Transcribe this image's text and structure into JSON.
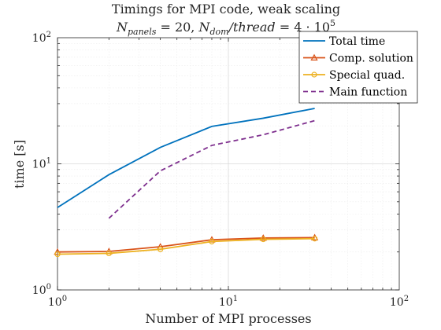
{
  "chart_data": {
    "type": "line",
    "title": "Timings for MPI code, weak scaling",
    "subtitle": "N_panels = 20, N_dom/thread = 4·10^5",
    "subtitle_parts": {
      "n_panels": "panels",
      "n_dom": "dom",
      "thread": "thread",
      "value_panels": "20",
      "mantissa": "4",
      "exponent": "5"
    },
    "xlabel": "Number of MPI processes",
    "ylabel": "time [s]",
    "xscale": "log",
    "yscale": "log",
    "xlim": [
      1,
      100
    ],
    "ylim": [
      1,
      100
    ],
    "x_ticks": [
      {
        "value": 1,
        "base": "10",
        "exp": "0"
      },
      {
        "value": 10,
        "base": "10",
        "exp": "1"
      },
      {
        "value": 100,
        "base": "10",
        "exp": "2"
      }
    ],
    "y_ticks": [
      {
        "value": 1,
        "base": "10",
        "exp": "0"
      },
      {
        "value": 10,
        "base": "10",
        "exp": "1"
      },
      {
        "value": 100,
        "base": "10",
        "exp": "2"
      }
    ],
    "grid": true,
    "minor_grid": true,
    "legend_position": "top-right",
    "series": [
      {
        "name": "Total time",
        "color": "#0072BD",
        "style": "solid",
        "marker": "none",
        "x": [
          1,
          2,
          4,
          8,
          16,
          32
        ],
        "y": [
          4.5,
          8.2,
          13.5,
          19.8,
          23.0,
          27.5
        ]
      },
      {
        "name": "Comp. solution",
        "color": "#D95319",
        "style": "solid",
        "marker": "triangle",
        "x": [
          1,
          2,
          4,
          8,
          16,
          32
        ],
        "y": [
          2.0,
          2.02,
          2.2,
          2.5,
          2.58,
          2.6
        ]
      },
      {
        "name": "Special quad.",
        "color": "#EDB120",
        "style": "solid",
        "marker": "circle",
        "x": [
          1,
          2,
          4,
          8,
          16,
          32
        ],
        "y": [
          1.92,
          1.95,
          2.1,
          2.42,
          2.52,
          2.55
        ]
      },
      {
        "name": "Main function",
        "color": "#7E2F8E",
        "style": "dashed",
        "marker": "none",
        "x": [
          2,
          4,
          8,
          16,
          32
        ],
        "y": [
          3.7,
          8.8,
          14.0,
          17.0,
          22.0
        ]
      }
    ]
  }
}
